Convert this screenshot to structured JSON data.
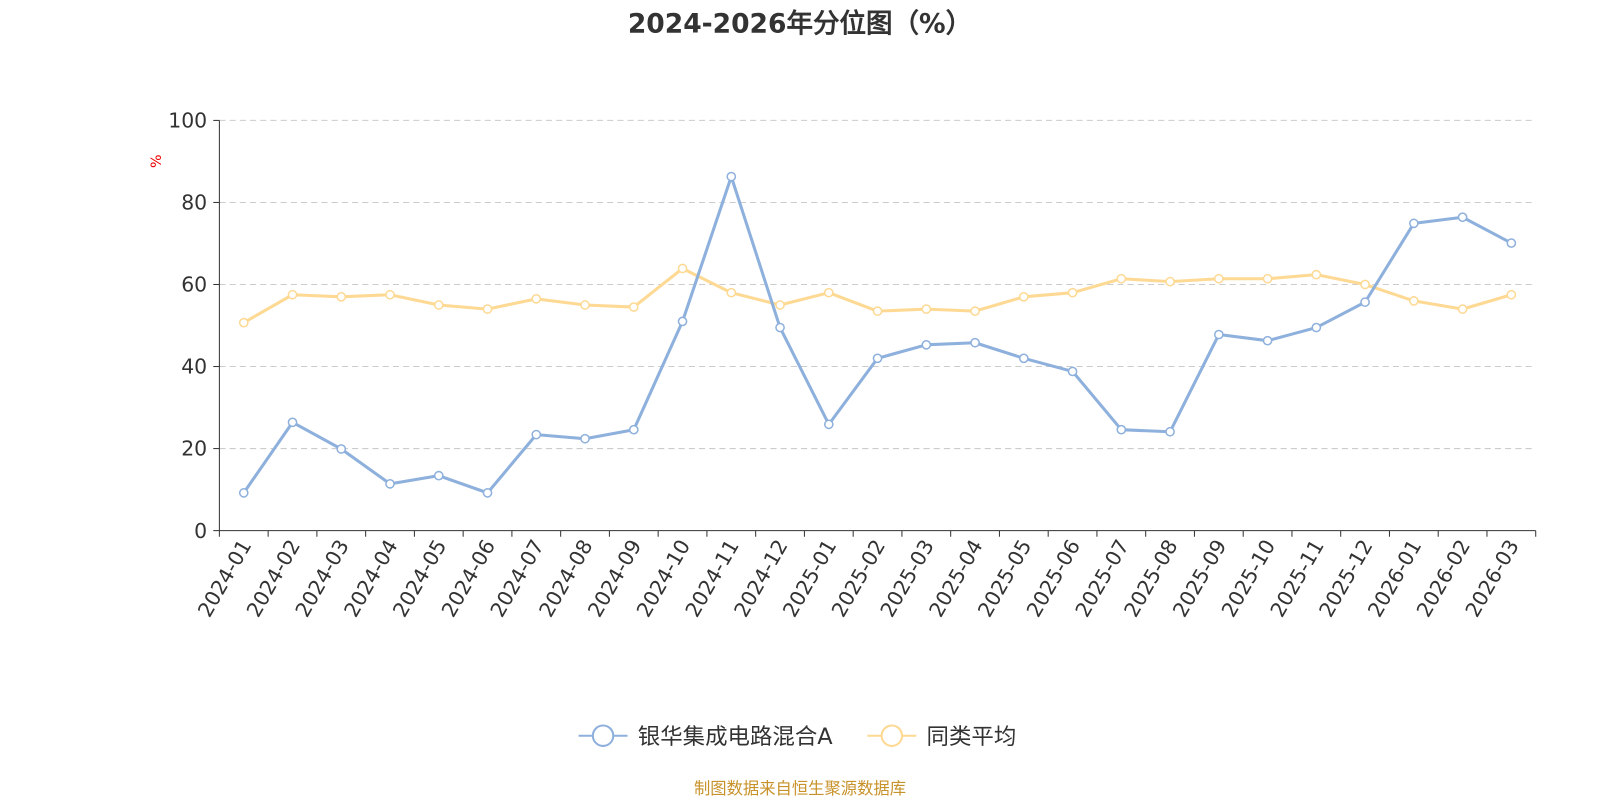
{
  "chart_data": {
    "type": "line",
    "title": "2024-2026年分位图（%）",
    "ylabel": "%",
    "xlabel": "",
    "ylim": [
      0,
      100
    ],
    "yticks": [
      0,
      20,
      40,
      60,
      80,
      100
    ],
    "grid": true,
    "legend_position": "bottom-center",
    "categories": [
      "2024-01",
      "2024-02",
      "2024-03",
      "2024-04",
      "2024-05",
      "2024-06",
      "2024-07",
      "2024-08",
      "2024-09",
      "2024-10",
      "2024-11",
      "2024-12",
      "2025-01",
      "2025-02",
      "2025-03",
      "2025-04",
      "2025-05",
      "2025-06",
      "2025-07",
      "2025-08",
      "2025-09",
      "2025-10",
      "2025-11",
      "2025-12",
      "2026-01",
      "2026-02",
      "2026-03"
    ],
    "series": [
      {
        "name": "银华集成电路混合A",
        "color": "#8eb0dc",
        "values": [
          9.2,
          26.4,
          19.9,
          11.4,
          13.4,
          9.2,
          23.4,
          22.4,
          24.6,
          51.0,
          86.3,
          49.5,
          25.9,
          42.0,
          45.3,
          45.8,
          42.0,
          38.8,
          24.6,
          24.1,
          47.8,
          46.3,
          49.5,
          55.7,
          74.9,
          76.4,
          70.1
        ]
      },
      {
        "name": "同类平均",
        "color": "#fdd994",
        "values": [
          50.7,
          57.5,
          57.0,
          57.5,
          55.0,
          54.0,
          56.5,
          55.0,
          54.5,
          63.9,
          58.0,
          55.0,
          58.0,
          53.5,
          54.0,
          53.5,
          57.0,
          58.0,
          61.4,
          60.7,
          61.4,
          61.4,
          62.4,
          60.0,
          56.0,
          54.0,
          57.5
        ]
      }
    ]
  },
  "source_note": "制图数据来自恒生聚源数据库"
}
